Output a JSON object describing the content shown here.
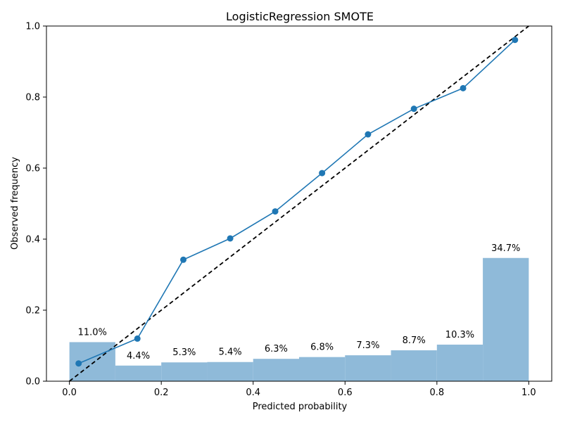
{
  "chart_data": {
    "type": "bar+line",
    "title": "LogisticRegression SMOTE",
    "xlabel": "Predicted probability",
    "ylabel": "Observed frequency",
    "xlim": [
      -0.05,
      1.05
    ],
    "ylim": [
      0.0,
      1.0
    ],
    "xticks": [
      0.0,
      0.2,
      0.4,
      0.6,
      0.8,
      1.0
    ],
    "xtick_labels": [
      "0.0",
      "0.2",
      "0.4",
      "0.6",
      "0.8",
      "1.0"
    ],
    "yticks": [
      0.0,
      0.2,
      0.4,
      0.6,
      0.8,
      1.0
    ],
    "ytick_labels": [
      "0.0",
      "0.2",
      "0.4",
      "0.6",
      "0.8",
      "1.0"
    ],
    "grid": false,
    "histogram": {
      "bin_edges": [
        0.0,
        0.1,
        0.2,
        0.3,
        0.4,
        0.5,
        0.6,
        0.7,
        0.8,
        0.9,
        1.0
      ],
      "values": [
        0.11,
        0.044,
        0.053,
        0.054,
        0.063,
        0.068,
        0.073,
        0.087,
        0.103,
        0.347
      ],
      "labels": [
        "11.0%",
        "4.4%",
        "5.3%",
        "5.4%",
        "6.3%",
        "6.8%",
        "7.3%",
        "8.7%",
        "10.3%",
        "34.7%"
      ],
      "color": "#8fbad9"
    },
    "calibration_curve": {
      "x": [
        0.02,
        0.148,
        0.248,
        0.35,
        0.448,
        0.55,
        0.65,
        0.75,
        0.857,
        0.97
      ],
      "y": [
        0.05,
        0.12,
        0.342,
        0.402,
        0.478,
        0.586,
        0.695,
        0.767,
        0.825,
        0.961
      ],
      "color": "#1f77b4"
    },
    "reference_line": {
      "x": [
        0.0,
        1.0
      ],
      "y": [
        0.0,
        1.0
      ],
      "color": "#000000",
      "style": "dashed"
    }
  }
}
